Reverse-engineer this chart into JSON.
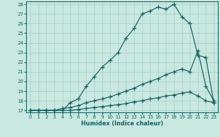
{
  "xlabel": "Humidex (Indice chaleur)",
  "bg_color": "#c8e8e0",
  "grid_color": "#a8ccc8",
  "line_color": "#1a6060",
  "xlim": [
    -0.5,
    23.5
  ],
  "ylim": [
    16.8,
    28.3
  ],
  "xticks": [
    0,
    1,
    2,
    3,
    4,
    5,
    6,
    7,
    8,
    9,
    10,
    11,
    12,
    13,
    14,
    15,
    16,
    17,
    18,
    19,
    20,
    21,
    22,
    23
  ],
  "yticks": [
    17,
    18,
    19,
    20,
    21,
    22,
    23,
    24,
    25,
    26,
    27,
    28
  ],
  "line1_x": [
    0,
    1,
    2,
    3,
    4,
    5,
    6,
    7,
    8,
    9,
    10,
    11,
    12,
    13,
    14,
    15,
    16,
    17,
    18,
    19,
    20,
    21,
    22,
    23
  ],
  "line1_y": [
    17,
    17,
    17,
    17,
    17,
    17.8,
    18.2,
    19.5,
    20.5,
    21.5,
    22.2,
    23.0,
    24.5,
    25.5,
    27.0,
    27.3,
    27.7,
    27.5,
    28.0,
    26.7,
    26.0,
    22.7,
    22.5,
    17.8
  ],
  "line2_x": [
    0,
    1,
    2,
    3,
    4,
    5,
    6,
    7,
    8,
    9,
    10,
    11,
    12,
    13,
    14,
    15,
    16,
    17,
    18,
    19,
    20,
    21,
    22,
    23
  ],
  "line2_y": [
    17,
    17,
    17,
    17,
    17.2,
    17.3,
    17.5,
    17.8,
    18.0,
    18.2,
    18.4,
    18.7,
    19.0,
    19.3,
    19.7,
    20.0,
    20.3,
    20.7,
    21.0,
    21.3,
    21.0,
    23.2,
    19.5,
    18.0
  ],
  "line3_x": [
    0,
    1,
    2,
    3,
    4,
    5,
    6,
    7,
    8,
    9,
    10,
    11,
    12,
    13,
    14,
    15,
    16,
    17,
    18,
    19,
    20,
    21,
    22,
    23
  ],
  "line3_y": [
    17,
    17,
    17,
    17,
    17,
    17,
    17.1,
    17.2,
    17.3,
    17.4,
    17.5,
    17.6,
    17.7,
    17.9,
    18.0,
    18.2,
    18.3,
    18.5,
    18.6,
    18.8,
    18.9,
    18.5,
    18.0,
    17.8
  ]
}
